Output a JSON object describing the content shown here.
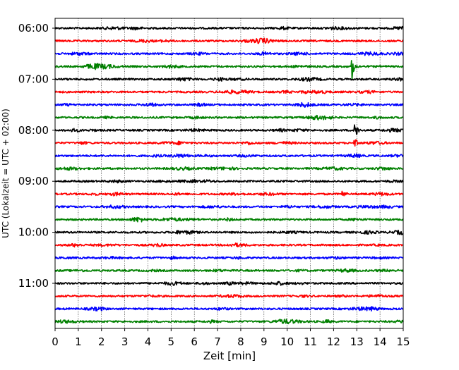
{
  "chart_data": {
    "type": "line",
    "subtype": "helicorder",
    "xlabel": "Zeit  [min]",
    "ylabel": "UTC (Lokalzeit = UTC + 02:00)",
    "xlim": [
      0,
      15
    ],
    "x_ticks": [
      "0",
      "1",
      "2",
      "3",
      "4",
      "5",
      "6",
      "7",
      "8",
      "9",
      "10",
      "11",
      "12",
      "13",
      "14",
      "15"
    ],
    "y_tick_labels": [
      {
        "label": "06:00",
        "row": 0
      },
      {
        "label": "07:00",
        "row": 4
      },
      {
        "label": "08:00",
        "row": 8
      },
      {
        "label": "09:00",
        "row": 12
      },
      {
        "label": "10:00",
        "row": 16
      },
      {
        "label": "11:00",
        "row": 20
      }
    ],
    "row_minutes": 15,
    "row_count": 24,
    "color_cycle": [
      "#000000",
      "#ff0000",
      "#0000ff",
      "#008000"
    ],
    "grid": "vertical dotted",
    "events": [
      {
        "row": 3,
        "minute": 12.8,
        "amplitude": 2.2
      },
      {
        "row": 8,
        "minute": 12.9,
        "amplitude": 1.8
      },
      {
        "row": 9,
        "minute": 12.9,
        "amplitude": 0.9
      },
      {
        "row": 13,
        "minute": 12.4,
        "amplitude": 0.7
      }
    ]
  }
}
